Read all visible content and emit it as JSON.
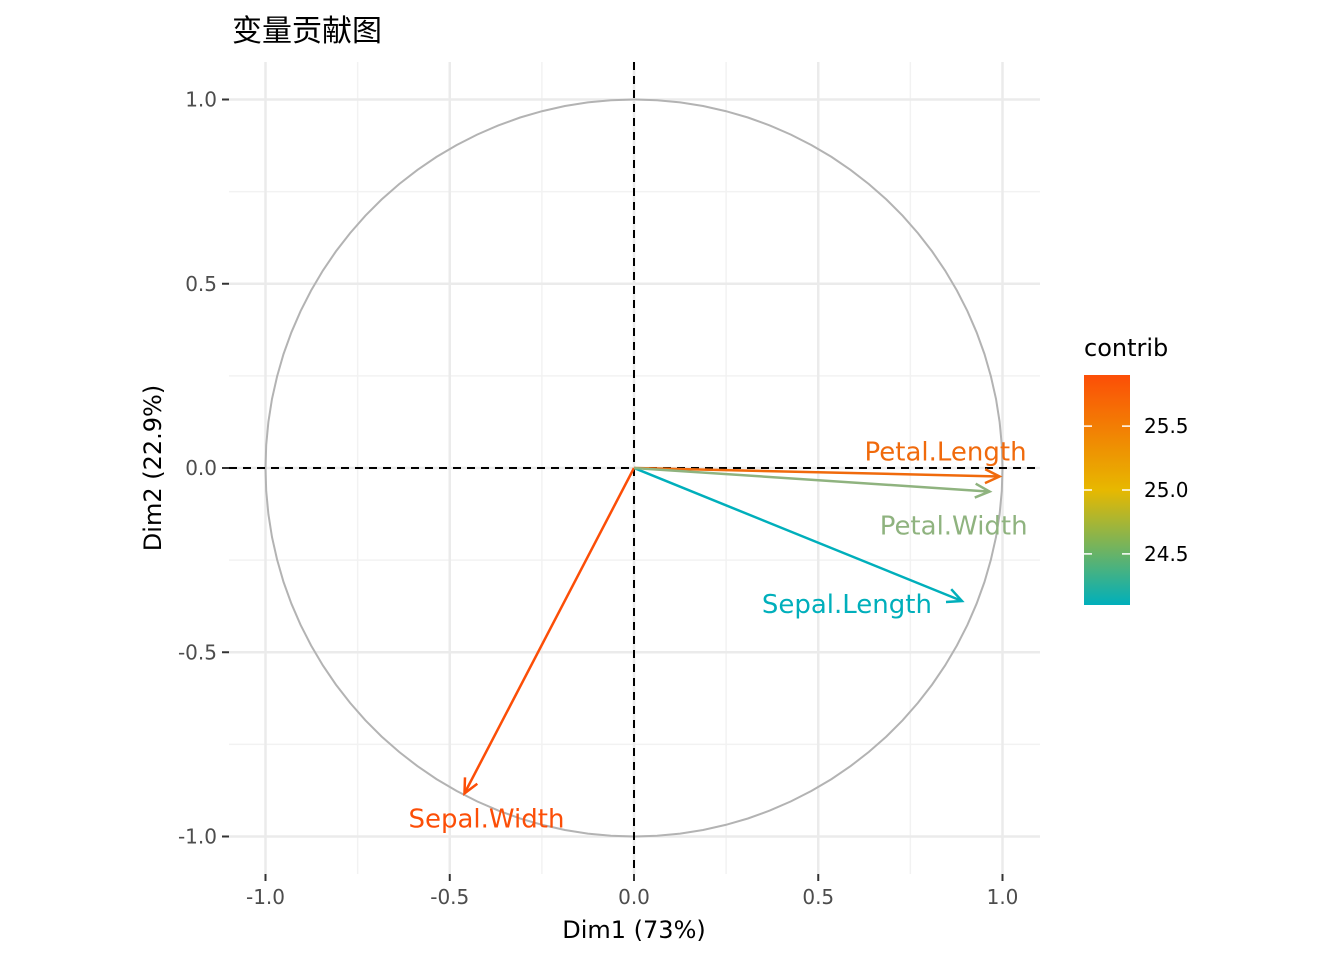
{
  "chart_data": {
    "type": "scatter",
    "title": "变量贡献图",
    "xlabel": "Dim1 (73%)",
    "ylabel": "Dim2 (22.9%)",
    "xlim": [
      -1.0,
      1.0
    ],
    "ylim": [
      -1.0,
      1.0
    ],
    "x_ticks": [
      "-1.0",
      "-0.5",
      "0.0",
      "0.5",
      "1.0"
    ],
    "y_ticks": [
      "1.0",
      "0.5",
      "0.0",
      "-0.5",
      "-1.0"
    ],
    "grid": true,
    "unit_circle": true,
    "reference_lines": {
      "x": 0,
      "y": 0,
      "style": "dashed"
    },
    "legend": {
      "title": "contrib",
      "placement": "right",
      "type": "continuous-colorbar",
      "range": [
        24.1,
        25.9
      ],
      "ticks": [
        "25.5",
        "25.0",
        "24.5"
      ],
      "colors": [
        "#00AFBB",
        "#E7B800",
        "#FC4E07"
      ]
    },
    "series": [
      {
        "name": "Sepal.Length",
        "x": 0.89,
        "y": -0.361,
        "contrib": 24.15,
        "color": "#00AFBB"
      },
      {
        "name": "Sepal.Width",
        "x": -0.46,
        "y": -0.883,
        "contrib": 25.9,
        "color": "#FC4E07"
      },
      {
        "name": "Petal.Length",
        "x": 0.992,
        "y": -0.023,
        "contrib": 25.85,
        "color": "#F06A0C"
      },
      {
        "name": "Petal.Width",
        "x": 0.965,
        "y": -0.064,
        "contrib": 24.45,
        "color": "#8FB37F"
      }
    ]
  }
}
